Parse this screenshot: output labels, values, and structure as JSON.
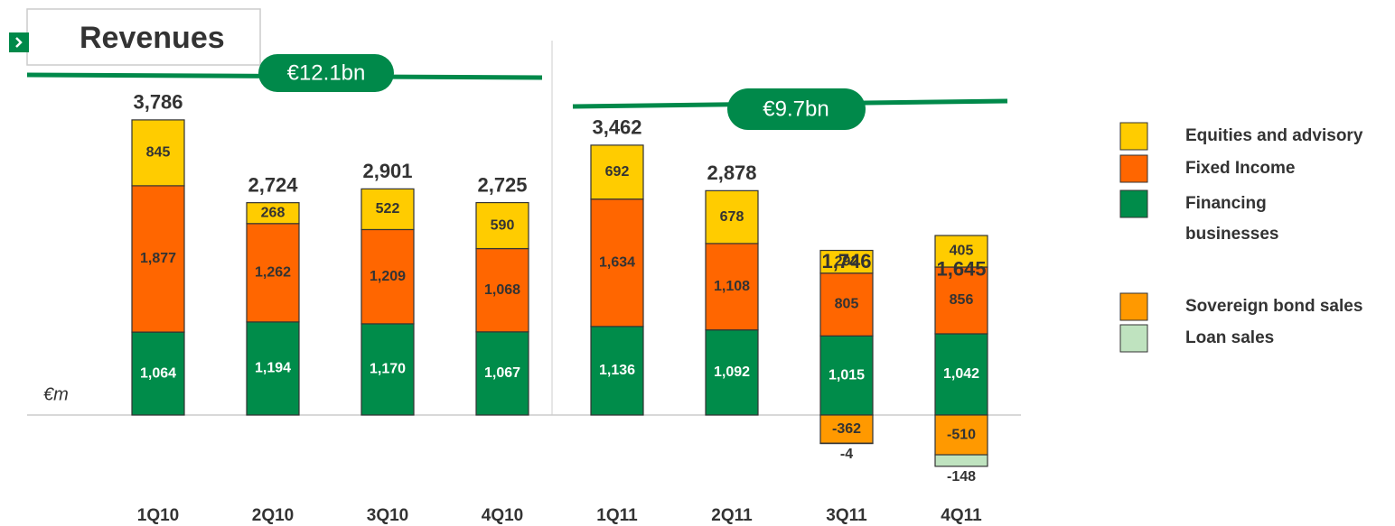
{
  "chart_data": {
    "type": "stacked_bar",
    "title": "Revenues",
    "unit_label": "€m",
    "annotations": [
      "€12.1bn",
      "€9.7bn"
    ],
    "categories": [
      "1Q10",
      "2Q10",
      "3Q10",
      "4Q10",
      "1Q11",
      "2Q11",
      "3Q11",
      "4Q11"
    ],
    "series": [
      {
        "name": "Financing businesses",
        "color": "#008c4a",
        "values": [
          1064,
          1194,
          1170,
          1067,
          1136,
          1092,
          1015,
          1042
        ],
        "value_labels": [
          "1,064",
          "1,194",
          "1,170",
          "1,067",
          "1,136",
          "1,092",
          "1,015",
          "1,042"
        ]
      },
      {
        "name": "Fixed Income",
        "color": "#ff6600",
        "values": [
          1877,
          1262,
          1209,
          1068,
          1634,
          1108,
          805,
          856
        ],
        "value_labels": [
          "1,877",
          "1,262",
          "1,209",
          "1,068",
          "1,634",
          "1,108",
          "805",
          "856"
        ]
      },
      {
        "name": "Equities and advisory",
        "color": "#ffcc00",
        "values": [
          845,
          268,
          522,
          590,
          692,
          678,
          292,
          405
        ]
      },
      {
        "name": "Sovereign bond sales",
        "color": "#ff9900",
        "values": [
          null,
          null,
          null,
          null,
          null,
          null,
          -362,
          -510
        ]
      },
      {
        "name": "Loan sales",
        "color": "#bfe3bf",
        "values": [
          null,
          null,
          null,
          null,
          null,
          null,
          -4,
          -148
        ]
      }
    ],
    "totals": [
      3786,
      2724,
      2901,
      2725,
      3462,
      2878,
      1746,
      1645
    ],
    "total_labels": [
      "3,786",
      "2,724",
      "2,901",
      "2,725",
      "3,462",
      "2,878",
      "1,746",
      "1,645"
    ]
  }
}
